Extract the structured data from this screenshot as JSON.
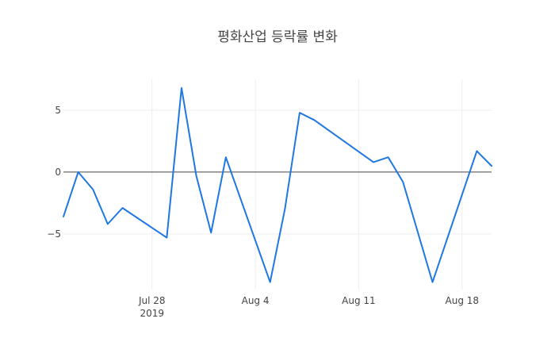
{
  "chart_data": {
    "type": "line",
    "title": "평화산업 등락률 변화",
    "xlabel": "",
    "ylabel": "",
    "xlim": [
      "2019-07-22",
      "2019-08-20"
    ],
    "ylim": [
      -9.5,
      7.5
    ],
    "x_ticks": [
      {
        "date": "2019-07-28",
        "label": "Jul 28",
        "sublabel": "2019"
      },
      {
        "date": "2019-08-04",
        "label": "Aug 4",
        "sublabel": ""
      },
      {
        "date": "2019-08-11",
        "label": "Aug 11",
        "sublabel": ""
      },
      {
        "date": "2019-08-18",
        "label": "Aug 18",
        "sublabel": ""
      }
    ],
    "y_ticks": [
      {
        "value": 5,
        "label": "5"
      },
      {
        "value": 0,
        "label": "0"
      },
      {
        "value": -5,
        "label": "−5"
      }
    ],
    "grid": true,
    "zero_line": true,
    "series": [
      {
        "color": "#1f77e4",
        "points": [
          {
            "x": "2019-07-22",
            "y": -3.6
          },
          {
            "x": "2019-07-23",
            "y": 0.0
          },
          {
            "x": "2019-07-24",
            "y": -1.4
          },
          {
            "x": "2019-07-25",
            "y": -4.2
          },
          {
            "x": "2019-07-26",
            "y": -2.9
          },
          {
            "x": "2019-07-29",
            "y": -5.3
          },
          {
            "x": "2019-07-30",
            "y": 6.8
          },
          {
            "x": "2019-07-31",
            "y": -0.3
          },
          {
            "x": "2019-08-01",
            "y": -4.9
          },
          {
            "x": "2019-08-02",
            "y": 1.2
          },
          {
            "x": "2019-08-05",
            "y": -8.9
          },
          {
            "x": "2019-08-06",
            "y": -3.0
          },
          {
            "x": "2019-08-07",
            "y": 4.8
          },
          {
            "x": "2019-08-08",
            "y": 4.2
          },
          {
            "x": "2019-08-12",
            "y": 0.8
          },
          {
            "x": "2019-08-13",
            "y": 1.2
          },
          {
            "x": "2019-08-14",
            "y": -0.8
          },
          {
            "x": "2019-08-16",
            "y": -8.9
          },
          {
            "x": "2019-08-19",
            "y": 1.7
          },
          {
            "x": "2019-08-20",
            "y": 0.5
          }
        ]
      }
    ]
  }
}
